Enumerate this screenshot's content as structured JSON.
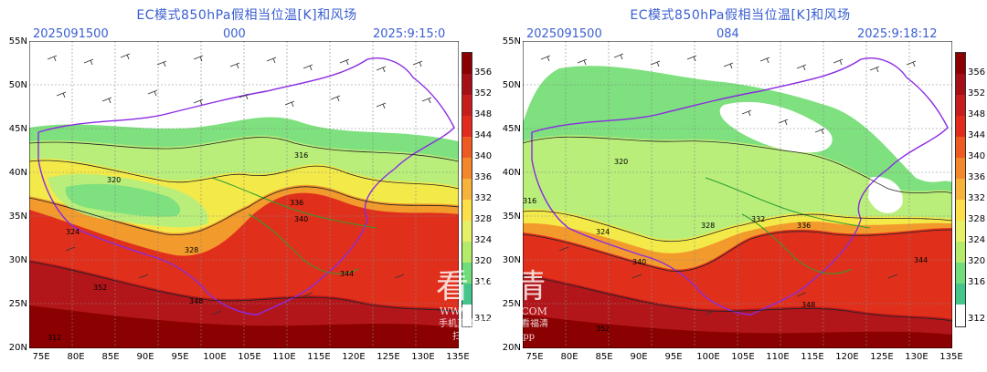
{
  "panels": [
    {
      "title": "EC模式850hPa假相当位温[K]和风场",
      "init": "2025091500",
      "lead": "000",
      "valid": "2025:9:15:0",
      "contour_labels": [
        "320",
        "324",
        "328",
        "336",
        "340",
        "344",
        "348",
        "352",
        "316",
        "312"
      ]
    },
    {
      "title": "EC模式850hPa假相当位温[K]和风场",
      "init": "2025091500",
      "lead": "084",
      "valid": "2025:9:18:12",
      "contour_labels": [
        "320",
        "324",
        "328",
        "332",
        "336",
        "340",
        "344",
        "348",
        "352",
        "316"
      ]
    }
  ],
  "axes": {
    "lat_labels": [
      "55N",
      "50N",
      "45N",
      "40N",
      "35N",
      "30N",
      "25N",
      "20N"
    ],
    "lon_labels": [
      "75E",
      "80E",
      "85E",
      "90E",
      "95E",
      "100E",
      "105E",
      "110E",
      "115E",
      "120E",
      "125E",
      "130E",
      "135E"
    ]
  },
  "colorbar": {
    "labels": [
      "356",
      "352",
      "348",
      "344",
      "340",
      "336",
      "332",
      "328",
      "324",
      "320",
      "316",
      "312"
    ],
    "colors": [
      "#8b0000",
      "#a50f15",
      "#c81d1d",
      "#e32b1b",
      "#ef5a21",
      "#f3872a",
      "#f7b23a",
      "#fde049",
      "#e6f067",
      "#b4ec6a",
      "#6fdd7a",
      "#46c58a",
      "#ffffff"
    ]
  },
  "watermark": {
    "brand": "看福清",
    "url": "WWW.FQLOOK.COM",
    "caption_1": "手机直播福清请搜索看福清",
    "caption_2": "扫码下载看福清App"
  }
}
